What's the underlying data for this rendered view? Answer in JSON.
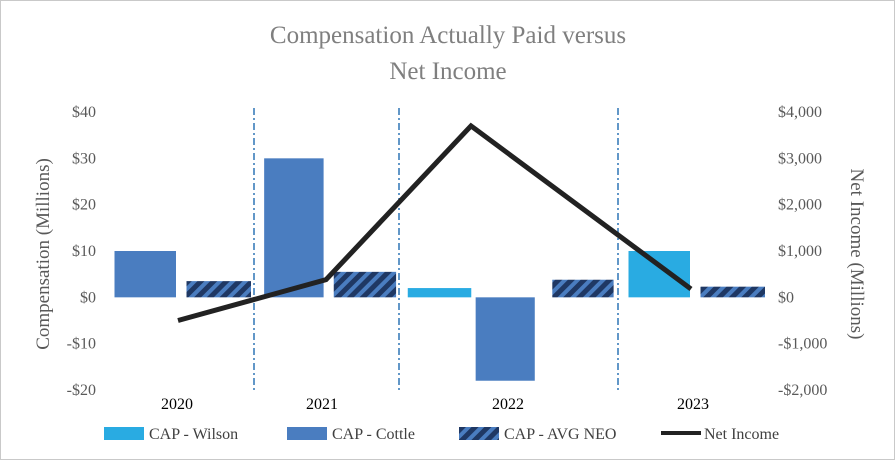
{
  "chart_data": {
    "type": "bar",
    "title_lines": [
      "Compensation Actually Paid versus",
      "Net Income"
    ],
    "categories": [
      "2020",
      "2021",
      "2022",
      "2023"
    ],
    "series": [
      {
        "name": "CAP - Wilson",
        "type": "bar",
        "axis": "left",
        "color": "#29abe2",
        "values": [
          null,
          null,
          2,
          10
        ]
      },
      {
        "name": "CAP - Cottle",
        "type": "bar",
        "axis": "left",
        "color": "#4a7dc0",
        "values": [
          10,
          30,
          -18,
          null
        ]
      },
      {
        "name": "CAP - AVG NEO",
        "type": "bar",
        "axis": "left",
        "color": "#4a7dc0",
        "pattern": "hatched",
        "values": [
          3.5,
          5.5,
          3.8,
          2.3
        ]
      },
      {
        "name": "Net Income",
        "type": "line",
        "axis": "right",
        "color": "#222222",
        "values": [
          -500,
          380,
          3700,
          180
        ]
      }
    ],
    "left_axis": {
      "label": "Compensation (Millions)",
      "ylim": [
        -20,
        40
      ],
      "ticks": [
        40,
        30,
        20,
        10,
        0,
        -10,
        -20
      ],
      "tick_labels": [
        "$40",
        "$30",
        "$20",
        "$10",
        "$0",
        "-$10",
        "-$20"
      ]
    },
    "right_axis": {
      "label": "Net Income (Millions)",
      "ylim": [
        -2000,
        4000
      ],
      "ticks": [
        4000,
        3000,
        2000,
        1000,
        0,
        -1000,
        -2000
      ],
      "tick_labels": [
        "$4,000",
        "$3,000",
        "$2,000",
        "$1,000",
        "$0",
        "-$1,000",
        "-$2,000"
      ]
    },
    "legend": [
      "CAP - Wilson",
      "CAP - Cottle",
      "CAP - AVG NEO",
      "Net Income"
    ],
    "legend_position": "bottom",
    "grid": false
  }
}
